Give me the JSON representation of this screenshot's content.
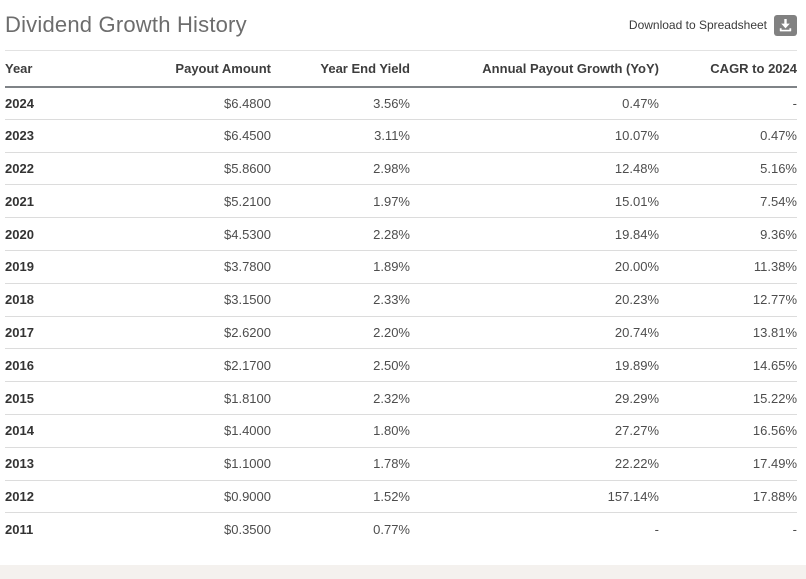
{
  "page": {
    "title": "Dividend Growth History",
    "download_label": "Download to Spreadsheet"
  },
  "table": {
    "columns": [
      "Year",
      "Payout Amount",
      "Year End Yield",
      "Annual Payout Growth (YoY)",
      "CAGR to 2024"
    ],
    "rows": [
      [
        "2024",
        "$6.4800",
        "3.56%",
        "0.47%",
        "-"
      ],
      [
        "2023",
        "$6.4500",
        "3.11%",
        "10.07%",
        "0.47%"
      ],
      [
        "2022",
        "$5.8600",
        "2.98%",
        "12.48%",
        "5.16%"
      ],
      [
        "2021",
        "$5.2100",
        "1.97%",
        "15.01%",
        "7.54%"
      ],
      [
        "2020",
        "$4.5300",
        "2.28%",
        "19.84%",
        "9.36%"
      ],
      [
        "2019",
        "$3.7800",
        "1.89%",
        "20.00%",
        "11.38%"
      ],
      [
        "2018",
        "$3.1500",
        "2.33%",
        "20.23%",
        "12.77%"
      ],
      [
        "2017",
        "$2.6200",
        "2.20%",
        "20.74%",
        "13.81%"
      ],
      [
        "2016",
        "$2.1700",
        "2.50%",
        "19.89%",
        "14.65%"
      ],
      [
        "2015",
        "$1.8100",
        "2.32%",
        "29.29%",
        "15.22%"
      ],
      [
        "2014",
        "$1.4000",
        "1.80%",
        "27.27%",
        "16.56%"
      ],
      [
        "2013",
        "$1.1000",
        "1.78%",
        "22.22%",
        "17.49%"
      ],
      [
        "2012",
        "$0.9000",
        "1.52%",
        "157.14%",
        "17.88%"
      ],
      [
        "2011",
        "$0.3500",
        "0.77%",
        "-",
        "-"
      ]
    ]
  },
  "colors": {
    "title_text": "#6d6d6d",
    "header_text": "#3d3d3d",
    "body_text": "#4d4d4d",
    "header_underline": "#7f8387",
    "row_divider": "#dcdcdc",
    "download_icon_bg": "#818181",
    "bottom_band": "#f4f1ee"
  }
}
